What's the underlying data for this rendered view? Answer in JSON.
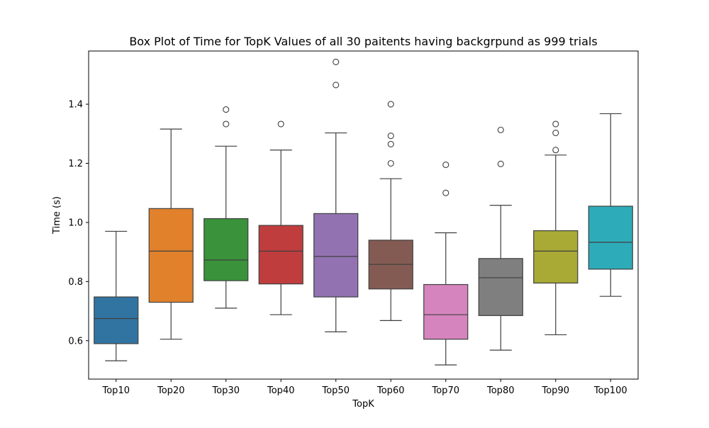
{
  "chart_data": {
    "type": "box",
    "title": "Box Plot of Time for TopK Values of all 30 paitents having backgrpund as 999 trials",
    "xlabel": "TopK",
    "ylabel": "Time (s)",
    "ylim": [
      0.47,
      1.58
    ],
    "yticks": [
      "0.6",
      "0.8",
      "1.0",
      "1.2",
      "1.4"
    ],
    "grid": false,
    "categories": [
      "Top10",
      "Top20",
      "Top30",
      "Top40",
      "Top50",
      "Top60",
      "Top70",
      "Top80",
      "Top90",
      "Top100"
    ],
    "boxes": [
      {
        "category": "Top10",
        "color": "#3274a1",
        "whisker_low": 0.532,
        "q1": 0.59,
        "median": 0.675,
        "q3": 0.748,
        "whisker_high": 0.97,
        "outliers": []
      },
      {
        "category": "Top20",
        "color": "#e1812c",
        "whisker_low": 0.605,
        "q1": 0.73,
        "median": 0.903,
        "q3": 1.047,
        "whisker_high": 1.316,
        "outliers": []
      },
      {
        "category": "Top30",
        "color": "#3a923a",
        "whisker_low": 0.71,
        "q1": 0.803,
        "median": 0.873,
        "q3": 1.013,
        "whisker_high": 1.258,
        "outliers": [
          1.333,
          1.382
        ]
      },
      {
        "category": "Top40",
        "color": "#c03d3e",
        "whisker_low": 0.688,
        "q1": 0.792,
        "median": 0.903,
        "q3": 0.99,
        "whisker_high": 1.245,
        "outliers": [
          1.333
        ]
      },
      {
        "category": "Top50",
        "color": "#9372b2",
        "whisker_low": 0.63,
        "q1": 0.748,
        "median": 0.885,
        "q3": 1.03,
        "whisker_high": 1.303,
        "outliers": [
          1.465,
          1.543
        ]
      },
      {
        "category": "Top60",
        "color": "#845b53",
        "whisker_low": 0.668,
        "q1": 0.775,
        "median": 0.858,
        "q3": 0.94,
        "whisker_high": 1.148,
        "outliers": [
          1.2,
          1.265,
          1.293,
          1.4
        ]
      },
      {
        "category": "Top70",
        "color": "#d684bd",
        "whisker_low": 0.518,
        "q1": 0.605,
        "median": 0.688,
        "q3": 0.79,
        "whisker_high": 0.965,
        "outliers": [
          1.1,
          1.195
        ]
      },
      {
        "category": "Top80",
        "color": "#7f7f7f",
        "whisker_low": 0.568,
        "q1": 0.685,
        "median": 0.813,
        "q3": 0.878,
        "whisker_high": 1.058,
        "outliers": [
          1.198,
          1.313
        ]
      },
      {
        "category": "Top90",
        "color": "#a9aa35",
        "whisker_low": 0.62,
        "q1": 0.795,
        "median": 0.903,
        "q3": 0.972,
        "whisker_high": 1.228,
        "outliers": [
          1.245,
          1.303,
          1.333
        ]
      },
      {
        "category": "Top100",
        "color": "#2eabb8",
        "whisker_low": 0.75,
        "q1": 0.842,
        "median": 0.933,
        "q3": 1.055,
        "whisker_high": 1.368,
        "outliers": []
      }
    ]
  }
}
